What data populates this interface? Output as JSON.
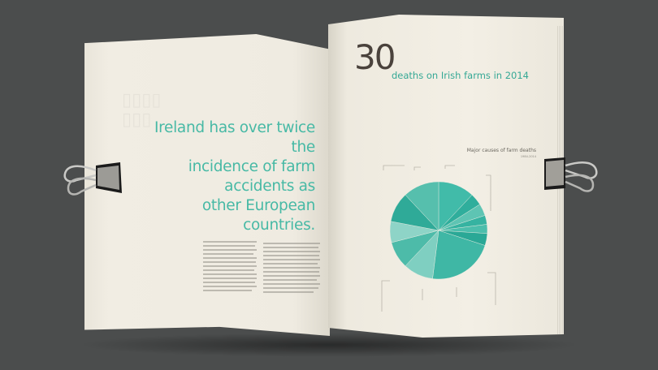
{
  "headline": {
    "line1": "Ireland has over twice the",
    "line2": "incidence of farm accidents as",
    "line3": "other European countries."
  },
  "stat": {
    "number": "30",
    "label": "deaths on Irish farms in 2014"
  },
  "chart_data": {
    "type": "pie",
    "title": "Major causes of farm deaths",
    "subtitle": "1984-2014",
    "values": [
      12,
      4,
      4,
      3,
      3,
      4,
      22,
      10,
      9,
      7,
      10,
      12
    ],
    "colors": [
      "#41bba9",
      "#2fae9c",
      "#5ec4b3",
      "#36b3a1",
      "#4cbeac",
      "#2aa896",
      "#3fb7a5",
      "#7fcfc1",
      "#4dbba9",
      "#8ed4c7",
      "#2faa98",
      "#56bfad"
    ]
  },
  "colors": {
    "accent": "#47b9a5",
    "background": "#4b4d4d",
    "paper": "#f1ede3"
  }
}
